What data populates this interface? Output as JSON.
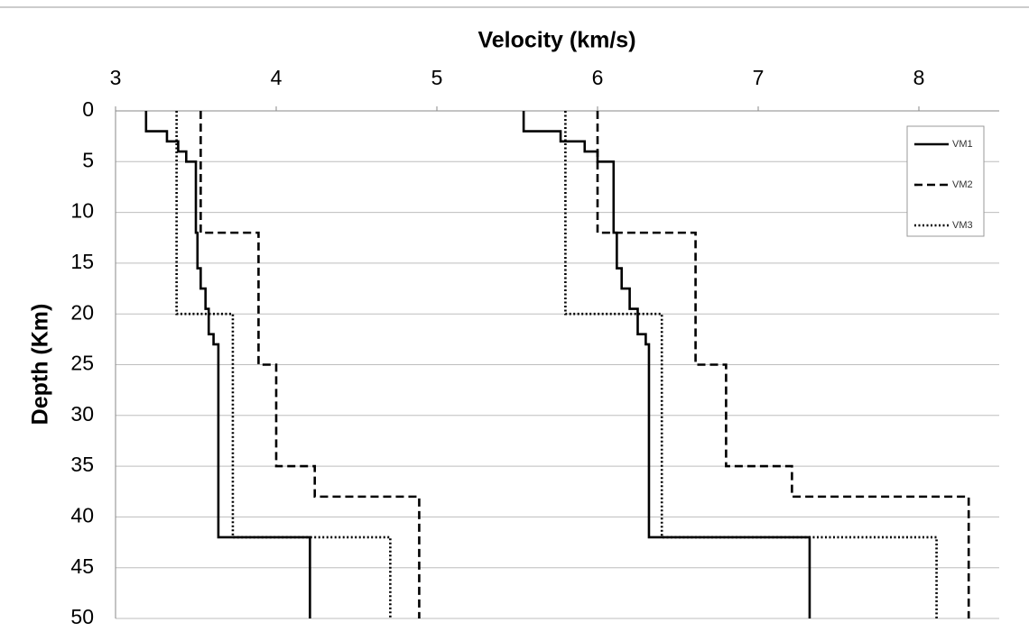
{
  "chart_data": {
    "type": "line",
    "xlabel": "Velocity (km/s)",
    "ylabel": "Depth (Km)",
    "xlim": [
      3,
      8.5
    ],
    "xticks": [
      3,
      4,
      5,
      6,
      7,
      8
    ],
    "xaxis_position": "top",
    "ylim": [
      0,
      50
    ],
    "yticks": [
      0,
      5,
      10,
      15,
      20,
      25,
      30,
      35,
      40,
      45,
      50
    ],
    "y_inverted": true,
    "grid": true,
    "legend": "upper right",
    "series": [
      {
        "name": "VM1",
        "color": "#000000",
        "dash": "solid",
        "x": [
          3.19,
          3.19,
          3.32,
          3.32,
          3.39,
          3.39,
          3.44,
          3.44,
          3.5,
          3.5,
          3.51,
          3.51,
          3.53,
          3.53,
          3.56,
          3.56,
          3.58,
          3.58,
          3.61,
          3.61,
          3.64,
          3.64,
          4.21,
          4.21,
          null,
          5.54,
          5.54,
          5.77,
          5.77,
          5.92,
          5.92,
          6.0,
          6.0,
          6.1,
          6.1,
          6.12,
          6.12,
          6.15,
          6.15,
          6.2,
          6.2,
          6.25,
          6.25,
          6.3,
          6.3,
          6.32,
          6.32,
          7.32,
          7.32
        ],
        "y": [
          0,
          2,
          2,
          3,
          3,
          4,
          4,
          5,
          5,
          12,
          12,
          15.5,
          15.5,
          17.5,
          17.5,
          19.5,
          19.5,
          22,
          22,
          23,
          23,
          42,
          42,
          50,
          null,
          0,
          2,
          2,
          3,
          3,
          4,
          4,
          5,
          5,
          12,
          12,
          15.5,
          15.5,
          17.5,
          17.5,
          19.5,
          19.5,
          22,
          22,
          23,
          23,
          42,
          42,
          50
        ]
      },
      {
        "name": "VM2",
        "color": "#000000",
        "dash": "dashed",
        "x": [
          3.53,
          3.53,
          3.89,
          3.89,
          4.0,
          4.0,
          4.24,
          4.24,
          4.89,
          4.89,
          null,
          6.0,
          6.0,
          6.61,
          6.61,
          6.8,
          6.8,
          7.21,
          7.21,
          8.31,
          8.31
        ],
        "y": [
          0,
          12,
          12,
          25,
          25,
          35,
          35,
          38,
          38,
          50,
          null,
          0,
          12,
          12,
          25,
          25,
          35,
          35,
          38,
          38,
          50
        ]
      },
      {
        "name": "VM3",
        "color": "#000000",
        "dash": "dotted",
        "x": [
          3.38,
          3.38,
          3.73,
          3.73,
          4.71,
          4.71,
          null,
          5.8,
          5.8,
          6.4,
          6.4,
          8.11,
          8.11
        ],
        "y": [
          0,
          20,
          20,
          42,
          42,
          50,
          null,
          0,
          20,
          20,
          42,
          42,
          50
        ]
      }
    ]
  }
}
